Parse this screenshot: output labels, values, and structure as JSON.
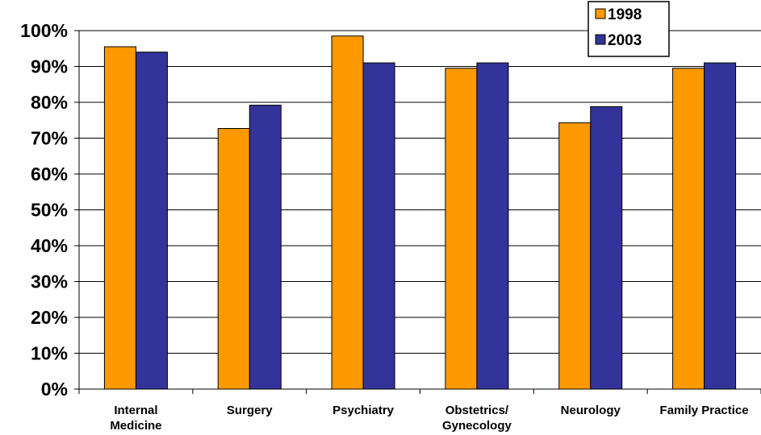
{
  "chart_data": {
    "type": "bar",
    "categories": [
      [
        "Internal",
        "Medicine"
      ],
      [
        "Surgery"
      ],
      [
        "Psychiatry"
      ],
      [
        "Obstetrics/",
        "Gynecology"
      ],
      [
        "Neurology"
      ],
      [
        "Family Practice"
      ]
    ],
    "series": [
      {
        "name": "1998",
        "color": "#FF9900",
        "values": [
          95.5,
          72.7,
          98.5,
          89.5,
          74.3,
          89.5
        ]
      },
      {
        "name": "2003",
        "color": "#333399",
        "values": [
          94.0,
          79.2,
          91.0,
          91.0,
          78.8,
          91.0
        ]
      }
    ],
    "ylim": [
      0,
      100
    ],
    "yticks": [
      "0%",
      "10%",
      "20%",
      "30%",
      "40%",
      "50%",
      "60%",
      "70%",
      "80%",
      "90%",
      "100%"
    ],
    "grid": true,
    "legend": "top-right",
    "title": "",
    "xlabel": "",
    "ylabel": ""
  }
}
